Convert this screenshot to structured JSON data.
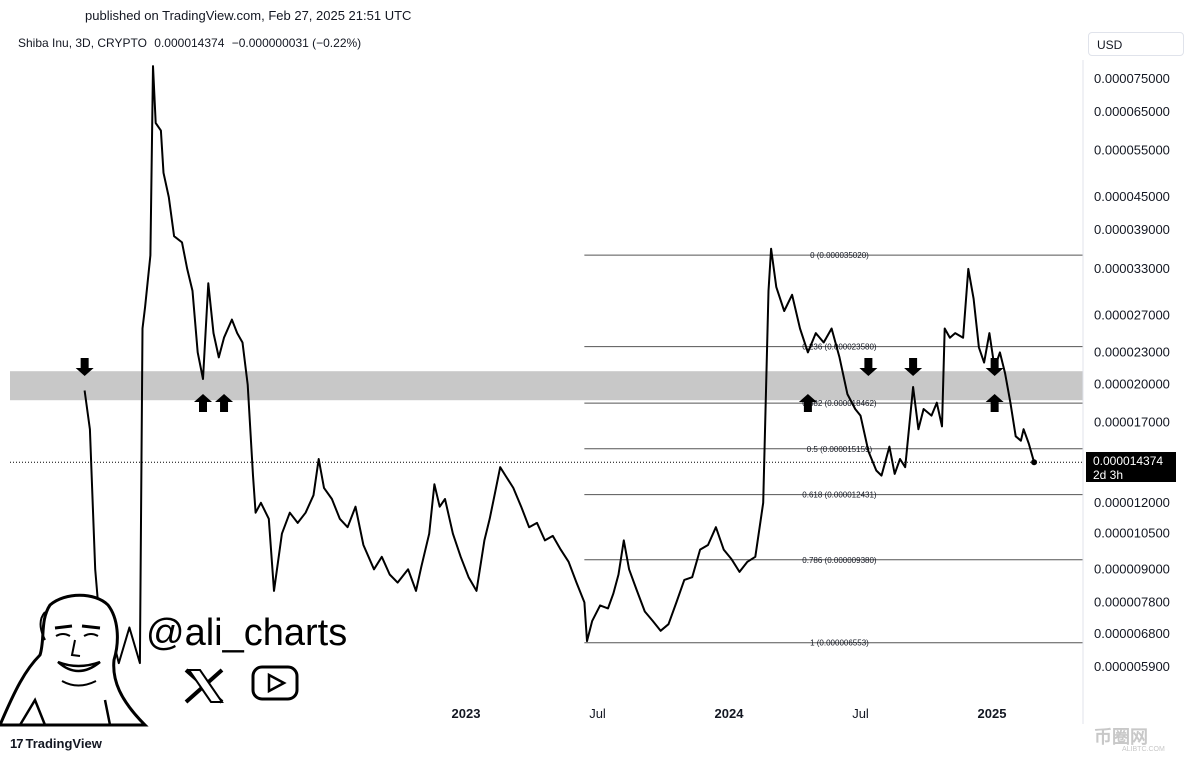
{
  "header": {
    "published": "published on TradingView.com, Feb 27, 2025 21:51 UTC",
    "symbol": "Shiba Inu, 3D, CRYPTO",
    "price": "0.000014374",
    "change": "−0.000000031 (−0.22%)"
  },
  "currency_button": "USD",
  "footer": {
    "brand": "TradingView",
    "brand_mark": "17"
  },
  "current_price": {
    "value": "0.000014374",
    "countdown": "2d 3h"
  },
  "branding": {
    "handle": "@ali_charts",
    "x_icon": "x-logo-icon",
    "youtube_icon": "youtube-icon"
  },
  "watermark": {
    "text": "币圈网",
    "sub": "ALIBTC.COM"
  },
  "colors": {
    "line": "#000000",
    "zone": "#c8c8c8",
    "fib": "#555555"
  },
  "chart_data": {
    "type": "line",
    "series": [
      {
        "values": [
          [
            2021.55,
            1.95e-05
          ],
          [
            2021.57,
            1.65e-05
          ],
          [
            2021.59,
            9e-06
          ],
          [
            2021.62,
            6e-06
          ],
          [
            2021.64,
            7.2e-06
          ],
          [
            2021.68,
            6e-06
          ],
          [
            2021.72,
            7e-06
          ],
          [
            2021.76,
            6e-06
          ],
          [
            2021.77,
            2.55e-05
          ],
          [
            2021.78,
            2.8e-05
          ],
          [
            2021.8,
            3.5e-05
          ],
          [
            2021.81,
            7.93e-05
          ],
          [
            2021.82,
            6.2e-05
          ],
          [
            2021.84,
            6e-05
          ],
          [
            2021.85,
            5e-05
          ],
          [
            2021.87,
            4.5e-05
          ],
          [
            2021.89,
            3.8e-05
          ],
          [
            2021.92,
            3.7e-05
          ],
          [
            2021.94,
            3.3e-05
          ],
          [
            2021.96,
            3e-05
          ],
          [
            2021.98,
            2.3e-05
          ],
          [
            2022.0,
            2.05e-05
          ],
          [
            2022.02,
            3.1e-05
          ],
          [
            2022.04,
            2.5e-05
          ],
          [
            2022.06,
            2.25e-05
          ],
          [
            2022.08,
            2.45e-05
          ],
          [
            2022.11,
            2.65e-05
          ],
          [
            2022.13,
            2.5e-05
          ],
          [
            2022.15,
            2.4e-05
          ],
          [
            2022.17,
            2e-05
          ],
          [
            2022.19,
            1.35e-05
          ],
          [
            2022.2,
            1.15e-05
          ],
          [
            2022.22,
            1.2e-05
          ],
          [
            2022.25,
            1.12e-05
          ],
          [
            2022.27,
            8.2e-06
          ],
          [
            2022.3,
            1.05e-05
          ],
          [
            2022.33,
            1.15e-05
          ],
          [
            2022.36,
            1.1e-05
          ],
          [
            2022.39,
            1.15e-05
          ],
          [
            2022.42,
            1.24e-05
          ],
          [
            2022.44,
            1.45e-05
          ],
          [
            2022.46,
            1.28e-05
          ],
          [
            2022.49,
            1.22e-05
          ],
          [
            2022.52,
            1.12e-05
          ],
          [
            2022.55,
            1.08e-05
          ],
          [
            2022.58,
            1.18e-05
          ],
          [
            2022.61,
            1e-05
          ],
          [
            2022.65,
            9e-06
          ],
          [
            2022.68,
            9.5e-06
          ],
          [
            2022.71,
            8.8e-06
          ],
          [
            2022.74,
            8.5e-06
          ],
          [
            2022.78,
            9e-06
          ],
          [
            2022.81,
            8.2e-06
          ],
          [
            2022.83,
            9.1e-06
          ],
          [
            2022.86,
            1.05e-05
          ],
          [
            2022.88,
            1.3e-05
          ],
          [
            2022.9,
            1.18e-05
          ],
          [
            2022.92,
            1.22e-05
          ],
          [
            2022.95,
            1.05e-05
          ],
          [
            2022.98,
            9.5e-06
          ],
          [
            2023.01,
            8.7e-06
          ],
          [
            2023.04,
            8.2e-06
          ],
          [
            2023.07,
            1.02e-05
          ],
          [
            2023.09,
            1.12e-05
          ],
          [
            2023.11,
            1.25e-05
          ],
          [
            2023.13,
            1.4e-05
          ],
          [
            2023.15,
            1.35e-05
          ],
          [
            2023.18,
            1.28e-05
          ],
          [
            2023.21,
            1.18e-05
          ],
          [
            2023.24,
            1.08e-05
          ],
          [
            2023.27,
            1.1e-05
          ],
          [
            2023.3,
            1.02e-05
          ],
          [
            2023.33,
            1.04e-05
          ],
          [
            2023.36,
            9.8e-06
          ],
          [
            2023.39,
            9.3e-06
          ],
          [
            2023.42,
            8.5e-06
          ],
          [
            2023.45,
            7.8e-06
          ],
          [
            2023.46,
            6.6e-06
          ],
          [
            2023.48,
            7.2e-06
          ],
          [
            2023.51,
            7.7e-06
          ],
          [
            2023.54,
            7.6e-06
          ],
          [
            2023.56,
            8.1e-06
          ],
          [
            2023.58,
            8.8e-06
          ],
          [
            2023.6,
            1.02e-05
          ],
          [
            2023.62,
            9e-06
          ],
          [
            2023.65,
            8.2e-06
          ],
          [
            2023.68,
            7.5e-06
          ],
          [
            2023.71,
            7.2e-06
          ],
          [
            2023.74,
            6.9e-06
          ],
          [
            2023.77,
            7.1e-06
          ],
          [
            2023.8,
            7.8e-06
          ],
          [
            2023.83,
            8.6e-06
          ],
          [
            2023.86,
            8.7e-06
          ],
          [
            2023.89,
            9.8e-06
          ],
          [
            2023.92,
            1e-05
          ],
          [
            2023.95,
            1.08e-05
          ],
          [
            2023.98,
            9.8e-06
          ],
          [
            2024.01,
            9.4e-06
          ],
          [
            2024.04,
            8.9e-06
          ],
          [
            2024.07,
            9.3e-06
          ],
          [
            2024.1,
            9.5e-06
          ],
          [
            2024.13,
            1.2e-05
          ],
          [
            2024.15,
            3e-05
          ],
          [
            2024.16,
            3.6e-05
          ],
          [
            2024.18,
            3.05e-05
          ],
          [
            2024.21,
            2.75e-05
          ],
          [
            2024.24,
            2.95e-05
          ],
          [
            2024.27,
            2.55e-05
          ],
          [
            2024.3,
            2.3e-05
          ],
          [
            2024.33,
            2.5e-05
          ],
          [
            2024.36,
            2.4e-05
          ],
          [
            2024.39,
            2.55e-05
          ],
          [
            2024.42,
            2.25e-05
          ],
          [
            2024.45,
            1.92e-05
          ],
          [
            2024.48,
            1.8e-05
          ],
          [
            2024.5,
            1.75e-05
          ],
          [
            2024.53,
            1.5e-05
          ],
          [
            2024.56,
            1.38e-05
          ],
          [
            2024.58,
            1.35e-05
          ],
          [
            2024.61,
            1.53e-05
          ],
          [
            2024.63,
            1.36e-05
          ],
          [
            2024.65,
            1.45e-05
          ],
          [
            2024.67,
            1.4e-05
          ],
          [
            2024.7,
            1.98e-05
          ],
          [
            2024.72,
            1.65e-05
          ],
          [
            2024.74,
            1.8e-05
          ],
          [
            2024.77,
            1.75e-05
          ],
          [
            2024.79,
            1.85e-05
          ],
          [
            2024.81,
            1.67e-05
          ],
          [
            2024.82,
            2.55e-05
          ],
          [
            2024.84,
            2.45e-05
          ],
          [
            2024.86,
            2.5e-05
          ],
          [
            2024.89,
            2.45e-05
          ],
          [
            2024.91,
            3.3e-05
          ],
          [
            2024.93,
            2.9e-05
          ],
          [
            2024.95,
            2.35e-05
          ],
          [
            2024.97,
            2.2e-05
          ],
          [
            2024.99,
            2.5e-05
          ],
          [
            2025.01,
            2.15e-05
          ],
          [
            2025.03,
            2.3e-05
          ],
          [
            2025.05,
            2.1e-05
          ],
          [
            2025.07,
            1.85e-05
          ],
          [
            2025.09,
            1.6e-05
          ],
          [
            2025.11,
            1.57e-05
          ],
          [
            2025.12,
            1.65e-05
          ],
          [
            2025.14,
            1.55e-05
          ],
          [
            2025.16,
            1.43e-05
          ]
        ]
      }
    ],
    "x_ticks": [
      "2023",
      "Jul",
      "2024",
      "Jul",
      "2025"
    ],
    "y_ticks": [
      "0.000075000",
      "0.000065000",
      "0.000055000",
      "0.000045000",
      "0.000039000",
      "0.000033000",
      "0.000027000",
      "0.000023000",
      "0.000020000",
      "0.000017000",
      "0.000012000",
      "0.000010500",
      "0.000009000",
      "0.000007800",
      "0.000006800",
      "0.000005900"
    ],
    "y_scale": "log",
    "fib_levels": [
      {
        "label": "0 (0.000035020)"
      },
      {
        "label": "0.236 (0.000023580)"
      },
      {
        "label": "0.382 (0.000018462)"
      },
      {
        "label": "0.5 (0.000015159)"
      },
      {
        "label": "0.618 (0.000012431)"
      },
      {
        "label": "0.786 (0.000009380)"
      },
      {
        "label": "1 (0.000006553)"
      }
    ],
    "support_zone": [
      1.87e-05,
      2.12e-05
    ],
    "arrows_down": [
      2021.55,
      2024.53,
      2024.7,
      2025.01
    ],
    "arrows_up": [
      2022.0,
      2022.08,
      2024.3,
      2025.01
    ]
  }
}
